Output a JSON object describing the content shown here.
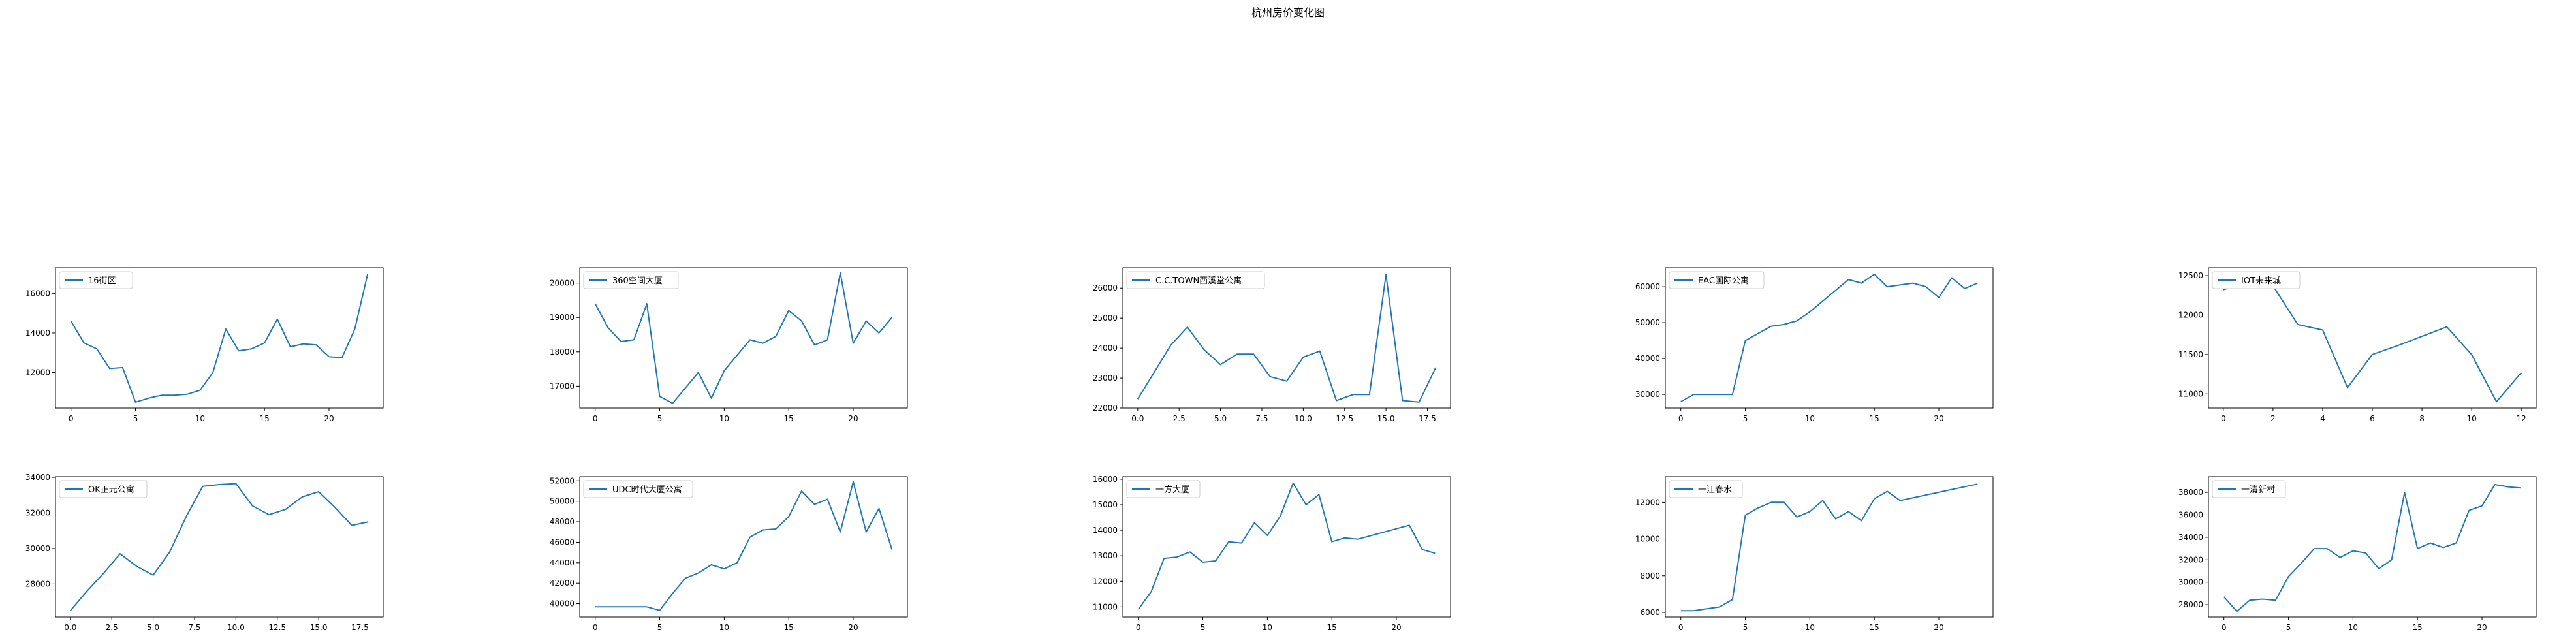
{
  "suptitle": "杭州房价变化图",
  "style": {
    "line_color": "#1f77b4",
    "axis_color": "#000000",
    "legend_border": "#cccccc"
  },
  "chart_data": [
    {
      "type": "line",
      "legend": "16街区",
      "legend_loc": "upper left",
      "x": [
        0,
        1,
        2,
        3,
        4,
        5,
        6,
        7,
        8,
        9,
        10,
        11,
        12,
        13,
        14,
        15,
        16,
        17,
        18,
        19,
        20,
        21,
        22,
        23
      ],
      "y": [
        14600,
        13500,
        13200,
        12200,
        12250,
        10500,
        10700,
        10850,
        10850,
        10900,
        11100,
        12000,
        14200,
        13100,
        13200,
        13500,
        14700,
        13300,
        13450,
        13400,
        12800,
        12750,
        14200,
        17000
      ],
      "xlim": [
        -1.2,
        24.2
      ],
      "ylim": [
        10200,
        17300
      ],
      "xticks": [
        0,
        5,
        10,
        15,
        20
      ],
      "xtick_labels": [
        "0",
        "5",
        "10",
        "15",
        "20"
      ],
      "yticks": [
        12000,
        14000,
        16000
      ],
      "ytick_labels": [
        "12000",
        "14000",
        "16000"
      ]
    },
    {
      "type": "line",
      "legend": "360空间大厦",
      "legend_loc": "upper left",
      "x": [
        0,
        1,
        2,
        3,
        4,
        5,
        6,
        7,
        8,
        9,
        10,
        11,
        12,
        13,
        14,
        15,
        16,
        17,
        18,
        19,
        20,
        21,
        22,
        23
      ],
      "y": [
        19400,
        18700,
        18300,
        18350,
        19400,
        16700,
        16500,
        16950,
        17400,
        16650,
        17450,
        17900,
        18350,
        18250,
        18450,
        19200,
        18900,
        18200,
        18350,
        20300,
        18250,
        18900,
        18550,
        19000
      ],
      "xlim": [
        -1.2,
        24.2
      ],
      "ylim": [
        16360,
        20450
      ],
      "xticks": [
        0,
        5,
        10,
        15,
        20
      ],
      "xtick_labels": [
        "0",
        "5",
        "10",
        "15",
        "20"
      ],
      "yticks": [
        17000,
        18000,
        19000,
        20000
      ],
      "ytick_labels": [
        "17000",
        "18000",
        "19000",
        "20000"
      ]
    },
    {
      "type": "line",
      "legend": "C.C.TOWN西溪堂公寓",
      "legend_loc": "upper left",
      "x": [
        0,
        1,
        2,
        3,
        4,
        5,
        6,
        7,
        8,
        9,
        10,
        11,
        12,
        13,
        14,
        15,
        16,
        17,
        18
      ],
      "y": [
        22300,
        23200,
        24100,
        24700,
        23950,
        23450,
        23800,
        23800,
        23050,
        22900,
        23700,
        23900,
        22250,
        22450,
        22450,
        26450,
        22250,
        22200,
        23350
      ],
      "xlim": [
        -0.9,
        18.9
      ],
      "ylim": [
        22000,
        26680
      ],
      "xticks": [
        0,
        2.5,
        5,
        7.5,
        10,
        12.5,
        15,
        17.5
      ],
      "xtick_labels": [
        "0.0",
        "2.5",
        "5.0",
        "7.5",
        "10.0",
        "12.5",
        "15.0",
        "17.5"
      ],
      "yticks": [
        22000,
        23000,
        24000,
        25000,
        26000
      ],
      "ytick_labels": [
        "22000",
        "23000",
        "24000",
        "25000",
        "26000"
      ]
    },
    {
      "type": "line",
      "legend": "EAC国际公寓",
      "legend_loc": "upper left",
      "x": [
        0,
        1,
        2,
        3,
        4,
        5,
        6,
        7,
        8,
        9,
        10,
        11,
        12,
        13,
        14,
        15,
        16,
        17,
        18,
        19,
        20,
        21,
        22,
        23
      ],
      "y": [
        28000,
        30000,
        30000,
        30000,
        30000,
        45000,
        47000,
        49000,
        49500,
        50500,
        53000,
        56000,
        59000,
        62000,
        61000,
        63500,
        60000,
        60500,
        61000,
        60000,
        57000,
        62500,
        59500,
        61000
      ],
      "xlim": [
        -1.2,
        24.2
      ],
      "ylim": [
        26200,
        65300
      ],
      "xticks": [
        0,
        5,
        10,
        15,
        20
      ],
      "xtick_labels": [
        "0",
        "5",
        "10",
        "15",
        "20"
      ],
      "yticks": [
        30000,
        40000,
        50000,
        60000
      ],
      "ytick_labels": [
        "30000",
        "40000",
        "50000",
        "60000"
      ]
    },
    {
      "type": "line",
      "legend": "IOT未来城",
      "legend_loc": "upper left",
      "x": [
        0,
        1,
        2,
        3,
        4,
        5,
        6,
        7,
        8,
        9,
        10,
        11,
        12
      ],
      "y": [
        12320,
        12420,
        12370,
        11880,
        11810,
        11080,
        11500,
        11610,
        11730,
        11850,
        11500,
        10900,
        11270
      ],
      "xlim": [
        -0.6,
        12.6
      ],
      "ylim": [
        10820,
        12600
      ],
      "xticks": [
        0,
        2,
        4,
        6,
        8,
        10,
        12
      ],
      "xtick_labels": [
        "0",
        "2",
        "4",
        "6",
        "8",
        "10",
        "12"
      ],
      "yticks": [
        11000,
        11500,
        12000,
        12500
      ],
      "ytick_labels": [
        "11000",
        "11500",
        "12000",
        "12500"
      ]
    },
    {
      "type": "line",
      "legend": "OK正元公寓",
      "legend_loc": "upper left",
      "x": [
        0,
        1,
        2,
        3,
        4,
        5,
        6,
        7,
        8,
        9,
        10,
        11,
        12,
        13,
        14,
        15,
        16,
        17,
        18
      ],
      "y": [
        26500,
        27600,
        28600,
        29700,
        29000,
        28500,
        29800,
        31800,
        33500,
        33600,
        33650,
        32400,
        31900,
        32200,
        32900,
        33200,
        32300,
        31300,
        31500
      ],
      "xlim": [
        -0.9,
        18.9
      ],
      "ylim": [
        26140,
        34040
      ],
      "xticks": [
        0,
        2.5,
        5,
        7.5,
        10,
        12.5,
        15,
        17.5
      ],
      "xtick_labels": [
        "0.0",
        "2.5",
        "5.0",
        "7.5",
        "10.0",
        "12.5",
        "15.0",
        "17.5"
      ],
      "yticks": [
        28000,
        30000,
        32000,
        34000
      ],
      "ytick_labels": [
        "28000",
        "30000",
        "32000",
        "34000"
      ]
    },
    {
      "type": "line",
      "legend": "UDC时代大厦公寓",
      "legend_loc": "upper left",
      "x": [
        0,
        1,
        2,
        3,
        4,
        5,
        6,
        7,
        8,
        9,
        10,
        11,
        12,
        13,
        14,
        15,
        16,
        17,
        18,
        19,
        20,
        21,
        22,
        23
      ],
      "y": [
        39700,
        39700,
        39700,
        39700,
        39700,
        39350,
        41000,
        42500,
        43000,
        43800,
        43400,
        44000,
        46500,
        47200,
        47300,
        48500,
        51000,
        49700,
        50200,
        47000,
        51900,
        47000,
        49300,
        45300
      ],
      "xlim": [
        -1.2,
        24.2
      ],
      "ylim": [
        38700,
        52400
      ],
      "xticks": [
        0,
        5,
        10,
        15,
        20
      ],
      "xtick_labels": [
        "0",
        "5",
        "10",
        "15",
        "20"
      ],
      "yticks": [
        40000,
        42000,
        44000,
        46000,
        48000,
        50000,
        52000
      ],
      "ytick_labels": [
        "40000",
        "42000",
        "44000",
        "46000",
        "48000",
        "50000",
        "52000"
      ]
    },
    {
      "type": "line",
      "legend": "一方大厦",
      "legend_loc": "upper left",
      "x": [
        0,
        1,
        2,
        3,
        4,
        5,
        6,
        7,
        8,
        9,
        10,
        11,
        12,
        13,
        14,
        15,
        16,
        17,
        21,
        22,
        23
      ],
      "y": [
        10900,
        11600,
        12900,
        12950,
        13150,
        12750,
        12800,
        13550,
        13500,
        14300,
        13800,
        14550,
        15850,
        15000,
        15400,
        13550,
        13700,
        13650,
        14200,
        13250,
        13100
      ],
      "xlim": [
        -1.2,
        24.2
      ],
      "ylim": [
        10600,
        16100
      ],
      "xticks": [
        0,
        5,
        10,
        15,
        20
      ],
      "xtick_labels": [
        "0",
        "5",
        "10",
        "15",
        "20"
      ],
      "yticks": [
        11000,
        12000,
        13000,
        14000,
        15000,
        16000
      ],
      "ytick_labels": [
        "11000",
        "12000",
        "13000",
        "14000",
        "15000",
        "16000"
      ]
    },
    {
      "type": "line",
      "legend": "一江春水",
      "legend_loc": "upper left",
      "x": [
        0,
        1,
        2,
        3,
        4,
        5,
        6,
        7,
        8,
        9,
        10,
        11,
        12,
        13,
        14,
        15,
        16,
        17,
        23
      ],
      "y": [
        6100,
        6100,
        6200,
        6300,
        6700,
        11300,
        11700,
        12000,
        12000,
        11200,
        11500,
        12100,
        11100,
        11500,
        11000,
        12200,
        12600,
        12100,
        13000
      ],
      "xlim": [
        -1.2,
        24.2
      ],
      "ylim": [
        5750,
        13400
      ],
      "xticks": [
        0,
        5,
        10,
        15,
        20
      ],
      "xtick_labels": [
        "0",
        "5",
        "10",
        "15",
        "20"
      ],
      "yticks": [
        6000,
        8000,
        10000,
        12000
      ],
      "ytick_labels": [
        "6000",
        "8000",
        "10000",
        "12000"
      ]
    },
    {
      "type": "line",
      "legend": "一清新村",
      "legend_loc": "upper left",
      "x": [
        0,
        1,
        2,
        3,
        4,
        5,
        6,
        7,
        8,
        9,
        10,
        11,
        12,
        13,
        14,
        15,
        16,
        17,
        18,
        19,
        20,
        21,
        22,
        23
      ],
      "y": [
        28700,
        27400,
        28400,
        28500,
        28400,
        30500,
        31700,
        33000,
        33000,
        32200,
        32800,
        32600,
        31200,
        32000,
        38000,
        33000,
        33500,
        33100,
        33500,
        36400,
        36800,
        38700,
        38500,
        38400
      ],
      "xlim": [
        -1.2,
        24.2
      ],
      "ylim": [
        26900,
        39400
      ],
      "xticks": [
        0,
        5,
        10,
        15,
        20
      ],
      "xtick_labels": [
        "0",
        "5",
        "10",
        "15",
        "20"
      ],
      "yticks": [
        28000,
        30000,
        32000,
        34000,
        36000,
        38000
      ],
      "ytick_labels": [
        "28000",
        "30000",
        "32000",
        "34000",
        "36000",
        "38000"
      ]
    }
  ]
}
